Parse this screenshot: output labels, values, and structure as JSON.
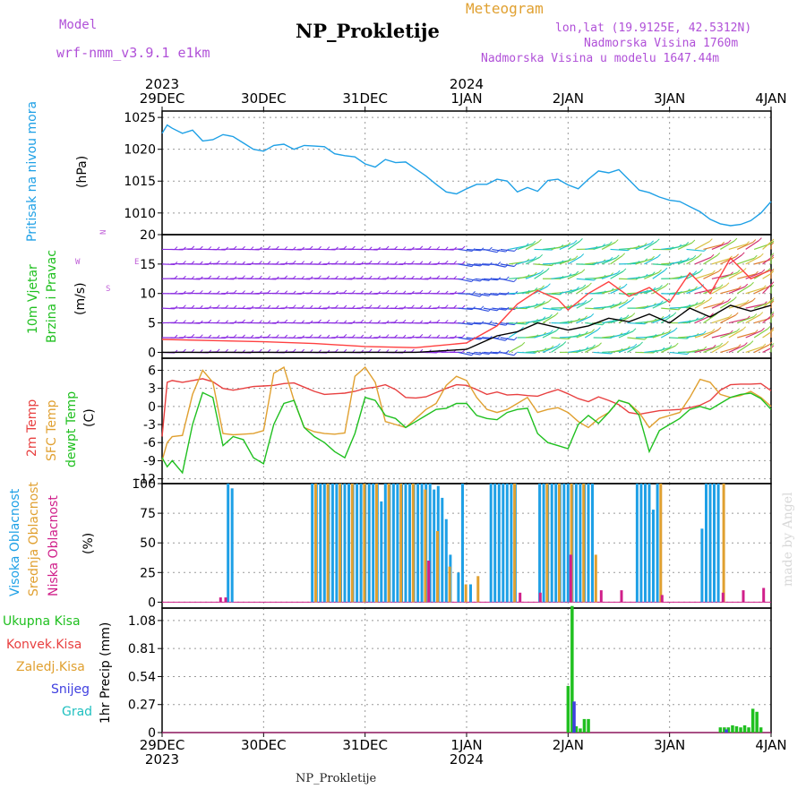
{
  "header": {
    "model_label": "Model",
    "model_name": "wrf-nmm_v3.9.1 e1km",
    "meteogram_label": "Meteogram",
    "title": "NP_Prokletije",
    "lonlat": "lon,lat (19.9125E, 42.5312N)",
    "elevation": "Nadmorska Visina 1760m",
    "model_elevation": "Nadmorska Visina u modelu 1647.44m",
    "footer": "NP_Prokletije",
    "credit": "made by Angel"
  },
  "time_axis": {
    "days": [
      "29DEC",
      "30DEC",
      "31DEC",
      "1JAN",
      "2JAN",
      "3JAN",
      "4JAN"
    ],
    "year_start": "2023",
    "year_new": "2024"
  },
  "panel_labels": {
    "pressure": {
      "name": "Pritisak na nivou mora",
      "unit": "(hPa)"
    },
    "wind": {
      "name1": "10m Vjetar",
      "name2": "Brzina i Pravac",
      "unit": "(m/s)",
      "rose": "N",
      "rose_w": "W",
      "rose_e": "E",
      "rose_s": "S"
    },
    "temp": {
      "l1": "2m Temp",
      "l2": "SFC Temp",
      "l3": "dewpt Temp",
      "unit": "(C)"
    },
    "cloud": {
      "l1": "Visoka Oblacnost",
      "l2": "Srednja Oblacnost",
      "l3": "Niska Oblacnost",
      "unit": "(%)"
    },
    "precip": {
      "l1": "Ukupna Kisa",
      "l2": "Konvek.Kisa",
      "l3": "Zaledj.Kisa",
      "l4": "Snijeg",
      "l5": "Grad",
      "unit": "1hr Precip (mm)"
    }
  },
  "chart_data": [
    {
      "type": "line",
      "id": "pressure",
      "ylabel": "(hPa)",
      "ylim": [
        1006.6,
        1026
      ],
      "yticks": [
        1010,
        1015,
        1020,
        1025
      ],
      "color": "#1ea0e6",
      "x_days": [
        0,
        0.05,
        0.1,
        0.2,
        0.3,
        0.4,
        0.5,
        0.6,
        0.7,
        0.8,
        0.9,
        1.0,
        1.1,
        1.2,
        1.3,
        1.4,
        1.5,
        1.6,
        1.7,
        1.8,
        1.9,
        2.0,
        2.1,
        2.2,
        2.3,
        2.4,
        2.5,
        2.6,
        2.7,
        2.8,
        2.9,
        3.0,
        3.1,
        3.2,
        3.3,
        3.4,
        3.5,
        3.6,
        3.7,
        3.8,
        3.9,
        4.0,
        4.1,
        4.2,
        4.3,
        4.4,
        4.5,
        4.6,
        4.7,
        4.8,
        4.9,
        5.0,
        5.1,
        5.2,
        5.3,
        5.4,
        5.5,
        5.6,
        5.7,
        5.8,
        5.9,
        6.0
      ],
      "values": [
        1022.5,
        1023.8,
        1023.3,
        1022.5,
        1023.0,
        1021.3,
        1021.5,
        1022.3,
        1022.0,
        1021.0,
        1020.0,
        1019.7,
        1020.6,
        1020.8,
        1020.0,
        1020.6,
        1020.5,
        1020.4,
        1019.3,
        1019.0,
        1018.8,
        1017.7,
        1017.2,
        1018.4,
        1017.9,
        1018.0,
        1016.9,
        1015.8,
        1014.5,
        1013.3,
        1013.0,
        1013.8,
        1014.5,
        1014.5,
        1015.3,
        1015.0,
        1013.3,
        1014.0,
        1013.4,
        1015.1,
        1015.3,
        1014.4,
        1013.8,
        1015.3,
        1016.6,
        1016.3,
        1016.8,
        1015.2,
        1013.6,
        1013.2,
        1012.5,
        1012.0,
        1011.8,
        1011.0,
        1010.2,
        1009.0,
        1008.3,
        1008.0,
        1008.2,
        1008.8,
        1010.0,
        1011.8
      ]
    },
    {
      "type": "wind",
      "id": "wind",
      "ylabel": "(m/s)",
      "ylim": [
        -1,
        20
      ],
      "yticks": [
        0,
        5,
        10,
        15,
        20
      ],
      "barb_levels": [
        0,
        2.5,
        5,
        7.5,
        10,
        12.5,
        15,
        17.5,
        20
      ],
      "speed_color": "#ff4040",
      "gust_color": "#000000",
      "speed_x": [
        0,
        0.5,
        1.0,
        1.5,
        2.0,
        2.5,
        3.0,
        3.3,
        3.5,
        3.7,
        3.9,
        4.0,
        4.2,
        4.4,
        4.6,
        4.8,
        5.0,
        5.2,
        5.4,
        5.6,
        5.8,
        6.0
      ],
      "speed": [
        2.2,
        2.0,
        1.8,
        1.5,
        1.0,
        0.8,
        1.6,
        4.5,
        8.2,
        10.5,
        9.0,
        7.2,
        10.0,
        12.0,
        9.5,
        11.0,
        8.5,
        13.5,
        10.0,
        16.0,
        12.5,
        14.0
      ],
      "gust": [
        0,
        0,
        0,
        0,
        0,
        0,
        0.5,
        2.8,
        3.5,
        5.0,
        4.2,
        3.8,
        4.5,
        5.8,
        5.2,
        6.5,
        5.0,
        7.5,
        6.0,
        8.0,
        7.0,
        8.0
      ]
    },
    {
      "type": "line",
      "id": "temperature",
      "ylabel": "(C)",
      "ylim": [
        -12.8,
        8
      ],
      "yticks": [
        -12,
        -9,
        -6,
        -3,
        0,
        3,
        6
      ],
      "x_days": [
        0,
        0.05,
        0.1,
        0.2,
        0.3,
        0.4,
        0.5,
        0.6,
        0.7,
        0.8,
        0.9,
        1.0,
        1.1,
        1.2,
        1.3,
        1.4,
        1.5,
        1.6,
        1.7,
        1.8,
        1.9,
        2.0,
        2.1,
        2.2,
        2.3,
        2.4,
        2.5,
        2.6,
        2.7,
        2.8,
        2.9,
        3.0,
        3.1,
        3.2,
        3.3,
        3.4,
        3.5,
        3.6,
        3.7,
        3.8,
        3.9,
        4.0,
        4.1,
        4.2,
        4.3,
        4.4,
        4.5,
        4.6,
        4.7,
        4.8,
        4.9,
        5.0,
        5.1,
        5.2,
        5.3,
        5.4,
        5.5,
        5.6,
        5.7,
        5.8,
        5.9,
        6.0
      ],
      "series": [
        {
          "name": "2m Temp",
          "color": "#e84040",
          "values": [
            -5,
            4,
            4.3,
            4.0,
            4.3,
            4.6,
            4.1,
            3.0,
            2.7,
            3.0,
            3.3,
            3.4,
            3.5,
            3.8,
            3.9,
            3.2,
            2.5,
            2.0,
            2.1,
            2.2,
            2.5,
            3.0,
            3.2,
            3.6,
            2.8,
            1.5,
            1.4,
            1.6,
            2.3,
            3.0,
            3.6,
            3.5,
            2.8,
            2.0,
            2.4,
            1.9,
            2.0,
            1.8,
            1.7,
            2.3,
            2.8,
            2.1,
            1.3,
            0.8,
            1.6,
            1.0,
            0.3,
            -1.0,
            -1.3,
            -1.0,
            -0.7,
            -0.6,
            -0.5,
            -0.2,
            0.2,
            1.0,
            2.7,
            3.6,
            3.7,
            3.7,
            3.8,
            2.6
          ]
        },
        {
          "name": "SFC Temp",
          "color": "#e0a030",
          "values": [
            -9,
            -6,
            -5,
            -4.8,
            2.0,
            6.0,
            4.0,
            -4.5,
            -4.7,
            -4.6,
            -4.5,
            -4.0,
            5.5,
            6.5,
            1.0,
            -3.5,
            -4.2,
            -4.5,
            -4.6,
            -4.4,
            5.0,
            6.5,
            4.0,
            -2.5,
            -3.0,
            -3.5,
            -2.0,
            -0.5,
            0.5,
            3.5,
            5.0,
            4.3,
            1.5,
            -0.5,
            -1.0,
            -0.5,
            0.5,
            1.5,
            -1.0,
            -0.5,
            -0.2,
            -1.0,
            -2.5,
            -3.5,
            -2.0,
            -1.0,
            1.0,
            0.5,
            -1.0,
            -3.5,
            -2.0,
            -1.5,
            -1.0,
            1.5,
            4.5,
            4.0,
            2.0,
            1.5,
            1.8,
            2.5,
            1.5,
            0.0
          ]
        },
        {
          "name": "dewpt Temp",
          "color": "#20c020",
          "values": [
            -8.5,
            -10,
            -9,
            -11,
            -3,
            2.3,
            1.5,
            -6.5,
            -5.0,
            -5.5,
            -8.5,
            -9.5,
            -3,
            0.5,
            1.0,
            -3.5,
            -5,
            -6.0,
            -7.5,
            -8.5,
            -4.5,
            1.5,
            1.0,
            -1.5,
            -2.0,
            -3.5,
            -2.5,
            -1.5,
            -0.5,
            -0.3,
            0.5,
            0.5,
            -1.5,
            -2.0,
            -2.2,
            -1.0,
            -0.5,
            -0.3,
            -4.5,
            -6.0,
            -6.5,
            -7.0,
            -3.0,
            -1.5,
            -2.8,
            -1.0,
            1.0,
            0.5,
            -1.5,
            -7.5,
            -4.0,
            -3.0,
            -2.0,
            -0.5,
            0.0,
            -0.5,
            0.5,
            1.5,
            2.0,
            2.2,
            1.3,
            -0.5
          ]
        }
      ]
    },
    {
      "type": "bar",
      "id": "cloud",
      "ylabel": "(%)",
      "ylim": [
        -5,
        100
      ],
      "yticks": [
        0,
        25,
        50,
        75,
        100
      ],
      "series": [
        {
          "name": "Visoka Oblacnost",
          "color": "#1ea0e6",
          "bars": [
            [
              0.65,
              100
            ],
            [
              0.69,
              96
            ],
            [
              1.48,
              100
            ],
            [
              1.52,
              100
            ],
            [
              1.56,
              100
            ],
            [
              1.6,
              100
            ],
            [
              1.64,
              100
            ],
            [
              1.68,
              100
            ],
            [
              1.72,
              100
            ],
            [
              1.76,
              100
            ],
            [
              1.8,
              100
            ],
            [
              1.84,
              100
            ],
            [
              1.88,
              100
            ],
            [
              1.92,
              100
            ],
            [
              1.96,
              100
            ],
            [
              2.0,
              100
            ],
            [
              2.04,
              100
            ],
            [
              2.08,
              100
            ],
            [
              2.12,
              100
            ],
            [
              2.16,
              85
            ],
            [
              2.2,
              100
            ],
            [
              2.24,
              100
            ],
            [
              2.28,
              100
            ],
            [
              2.32,
              100
            ],
            [
              2.36,
              100
            ],
            [
              2.4,
              100
            ],
            [
              2.44,
              100
            ],
            [
              2.48,
              100
            ],
            [
              2.52,
              100
            ],
            [
              2.56,
              100
            ],
            [
              2.6,
              100
            ],
            [
              2.64,
              100
            ],
            [
              2.68,
              95
            ],
            [
              2.72,
              98
            ],
            [
              2.76,
              88
            ],
            [
              2.8,
              70
            ],
            [
              2.84,
              40
            ],
            [
              2.92,
              25
            ],
            [
              2.96,
              100
            ],
            [
              3.04,
              15
            ],
            [
              3.24,
              100
            ],
            [
              3.28,
              100
            ],
            [
              3.32,
              100
            ],
            [
              3.36,
              100
            ],
            [
              3.4,
              100
            ],
            [
              3.44,
              100
            ],
            [
              3.48,
              100
            ],
            [
              3.72,
              100
            ],
            [
              3.76,
              100
            ],
            [
              3.8,
              100
            ],
            [
              3.84,
              100
            ],
            [
              3.88,
              100
            ],
            [
              3.92,
              100
            ],
            [
              3.96,
              100
            ],
            [
              4.0,
              100
            ],
            [
              4.04,
              100
            ],
            [
              4.08,
              100
            ],
            [
              4.12,
              100
            ],
            [
              4.16,
              100
            ],
            [
              4.2,
              100
            ],
            [
              4.24,
              100
            ],
            [
              4.68,
              100
            ],
            [
              4.72,
              100
            ],
            [
              4.76,
              100
            ],
            [
              4.8,
              100
            ],
            [
              4.84,
              78
            ],
            [
              4.88,
              100
            ],
            [
              5.32,
              62
            ],
            [
              5.36,
              100
            ],
            [
              5.4,
              100
            ],
            [
              5.44,
              100
            ],
            [
              5.48,
              100
            ]
          ]
        },
        {
          "name": "Srednja Oblacnost",
          "color": "#e0a030",
          "bars": [
            [
              1.5,
              100
            ],
            [
              1.62,
              100
            ],
            [
              1.74,
              100
            ],
            [
              1.86,
              100
            ],
            [
              1.98,
              100
            ],
            [
              2.1,
              100
            ],
            [
              2.22,
              100
            ],
            [
              2.34,
              100
            ],
            [
              2.46,
              100
            ],
            [
              2.58,
              95
            ],
            [
              2.7,
              60
            ],
            [
              2.82,
              30
            ],
            [
              2.98,
              15
            ],
            [
              3.1,
              22
            ],
            [
              3.46,
              100
            ],
            [
              3.78,
              100
            ],
            [
              3.9,
              100
            ],
            [
              4.02,
              100
            ],
            [
              4.14,
              100
            ],
            [
              4.26,
              40
            ],
            [
              4.9,
              100
            ],
            [
              5.52,
              100
            ]
          ]
        },
        {
          "name": "Niska Oblacnost",
          "color": "#d0208a",
          "bars": [
            [
              0.55,
              4
            ],
            [
              0.6,
              4
            ],
            [
              2.6,
              35
            ],
            [
              3.5,
              8
            ],
            [
              3.7,
              8
            ],
            [
              4.0,
              40
            ],
            [
              4.3,
              10
            ],
            [
              4.5,
              10
            ],
            [
              4.9,
              6
            ],
            [
              5.5,
              8
            ],
            [
              5.7,
              10
            ],
            [
              5.9,
              12
            ]
          ]
        }
      ]
    },
    {
      "type": "bar",
      "id": "precip",
      "ylabel": "1hr Precip (mm)",
      "ylim": [
        0,
        1.2
      ],
      "yticks": [
        0,
        0.27,
        0.54,
        0.81,
        1.08
      ],
      "series": [
        {
          "name": "Ukupna Kisa",
          "color": "#20c020",
          "bars": [
            [
              4.0,
              0.45
            ],
            [
              4.04,
              1.22
            ],
            [
              4.08,
              0.06
            ],
            [
              4.12,
              0.04
            ],
            [
              4.16,
              0.13
            ],
            [
              4.2,
              0.13
            ],
            [
              5.5,
              0.05
            ],
            [
              5.54,
              0.05
            ],
            [
              5.58,
              0.05
            ],
            [
              5.62,
              0.07
            ],
            [
              5.66,
              0.06
            ],
            [
              5.7,
              0.05
            ],
            [
              5.74,
              0.07
            ],
            [
              5.78,
              0.05
            ],
            [
              5.82,
              0.23
            ],
            [
              5.86,
              0.2
            ],
            [
              5.9,
              0.05
            ]
          ]
        },
        {
          "name": "Konvek.Kisa",
          "color": "#e84040",
          "bars": []
        },
        {
          "name": "Zaledj.Kisa",
          "color": "#e0a030",
          "bars": []
        },
        {
          "name": "Snijeg",
          "color": "#4040e0",
          "bars": [
            [
              4.02,
              0.3
            ],
            [
              5.52,
              0.03
            ]
          ]
        },
        {
          "name": "Grad",
          "color": "#20c0c0",
          "bars": []
        }
      ]
    }
  ]
}
